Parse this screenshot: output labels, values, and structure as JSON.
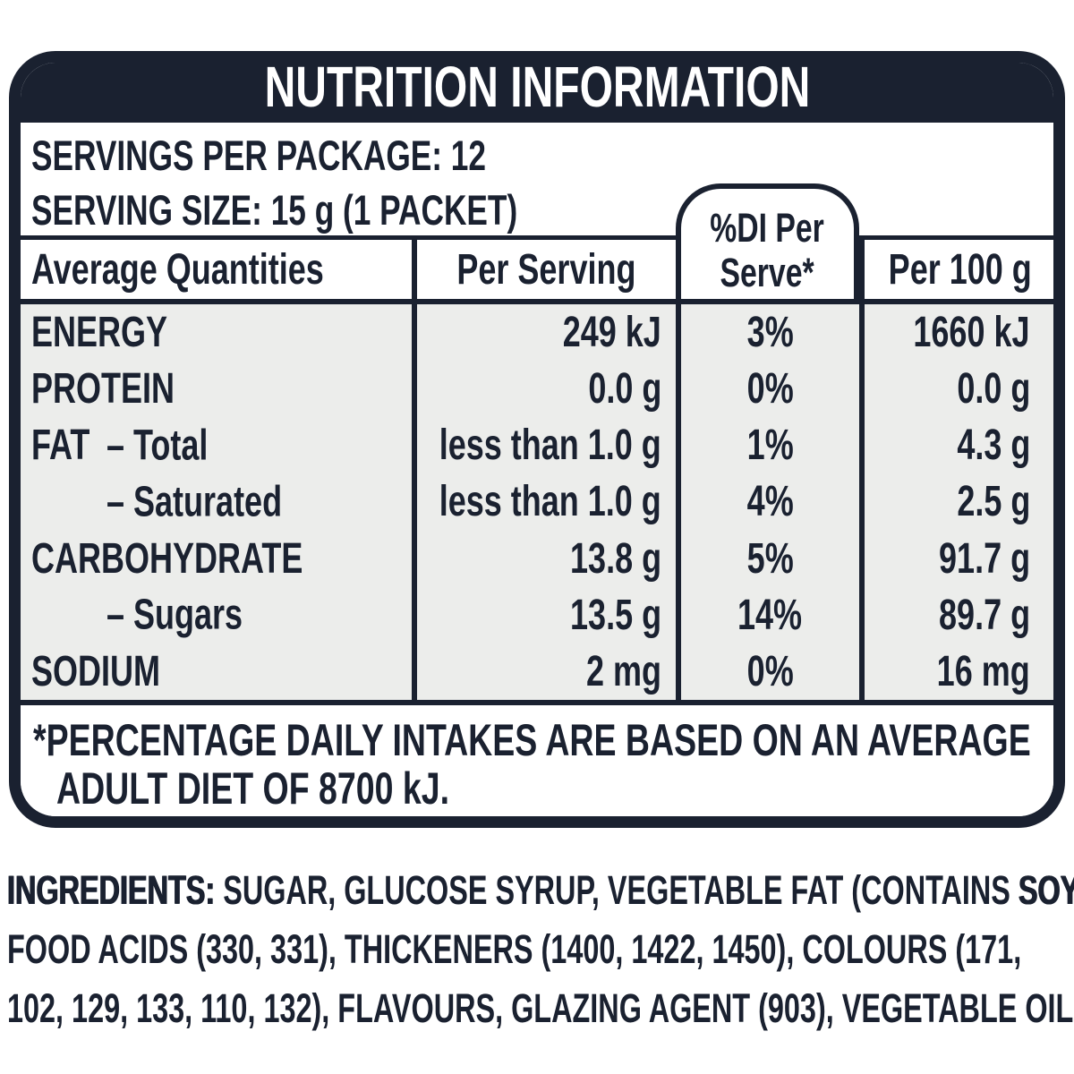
{
  "colors": {
    "navy": "#1a2130",
    "table_body_bg": "#ecedeb",
    "panel_bg": "#ffffff",
    "title_text": "#ffffff"
  },
  "panel": {
    "title": "NUTRITION INFORMATION",
    "servings_per_package": "SERVINGS PER PACKAGE: 12",
    "serving_size": "SERVING SIZE: 15 g (1 PACKET)",
    "columns": {
      "average_quantities": "Average Quantities",
      "per_serving": "Per Serving",
      "di_per_serve_line1": "%DI Per",
      "di_per_serve_line2": "Serve*",
      "per_100g": "Per 100 g"
    },
    "rows": [
      {
        "name": "ENERGY",
        "sub": "",
        "per_serving": "249 kJ",
        "di": "3%",
        "per_100g": "1660 kJ"
      },
      {
        "name": "PROTEIN",
        "sub": "",
        "per_serving": "0.0 g",
        "di": "0%",
        "per_100g": "0.0 g"
      },
      {
        "name": "FAT",
        "sub": "– Total",
        "per_serving": "less than 1.0 g",
        "di": "1%",
        "per_100g": "4.3 g"
      },
      {
        "name": "",
        "sub": "– Saturated",
        "per_serving": "less than 1.0 g",
        "di": "4%",
        "per_100g": "2.5 g"
      },
      {
        "name": "CARBOHYDRATE",
        "sub": "",
        "per_serving": "13.8 g",
        "di": "5%",
        "per_100g": "91.7 g"
      },
      {
        "name": "",
        "sub": "– Sugars",
        "per_serving": "13.5 g",
        "di": "14%",
        "per_100g": "89.7 g"
      },
      {
        "name": "SODIUM",
        "sub": "",
        "per_serving": "2 mg",
        "di": "0%",
        "per_100g": "16 mg"
      }
    ],
    "footnote_line1": "*PERCENTAGE DAILY INTAKES ARE BASED ON AN AVERAGE",
    "footnote_line2": "ADULT DIET OF 8700 kJ."
  },
  "ingredients": {
    "label": "INGREDIENTS:",
    "line1_part1": " SUGAR, GLUCOSE SYRUP, VEGETABLE FAT (CONTAINS ",
    "line1_bold": "SOY",
    "line1_part2": "),",
    "line2": "FOOD ACIDS (330, 331), THICKENERS (1400, 1422, 1450), COLOURS (171,",
    "line3": "102, 129, 133, 110, 132), FLAVOURS, GLAZING AGENT (903), VEGETABLE OIL."
  }
}
